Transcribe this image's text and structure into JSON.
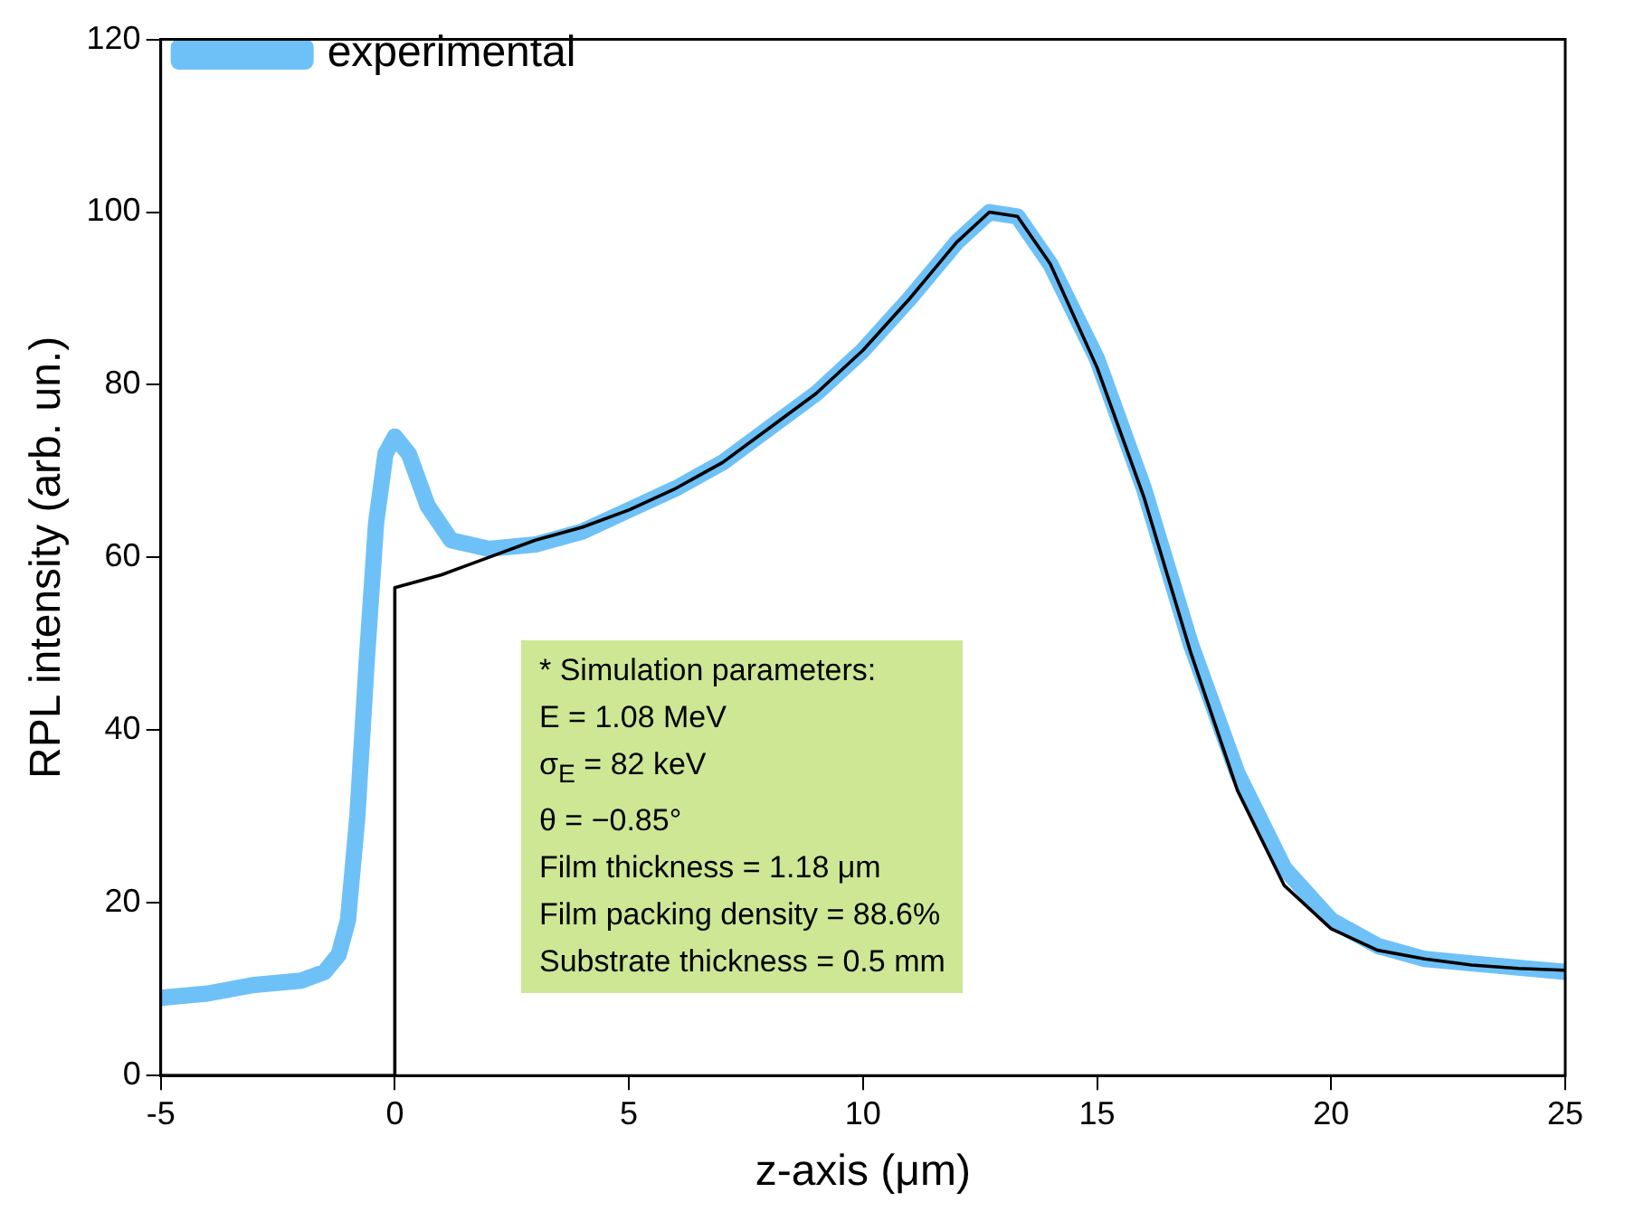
{
  "chart_data": {
    "type": "line",
    "xlabel": "z-axis (μm)",
    "ylabel": "RPL intensity (arb. un.)",
    "xlim": [
      -5,
      25
    ],
    "xticks": [
      -5,
      0,
      5,
      10,
      15,
      20,
      25
    ],
    "ylim": [
      0,
      120
    ],
    "yticks": [
      0,
      20,
      40,
      60,
      80,
      100,
      120
    ],
    "grid": false,
    "legend": "top left",
    "marker": "none",
    "line_style": "solid",
    "series": [
      {
        "name": "experimental",
        "color": "#6ec1f7",
        "x": [
          -5,
          -4,
          -3,
          -2,
          -1.5,
          -1.2,
          -1,
          -0.8,
          -0.6,
          -0.4,
          -0.2,
          0,
          0.3,
          0.7,
          1.2,
          2,
          3,
          4,
          5,
          6,
          7,
          8,
          9,
          10,
          11,
          12,
          12.7,
          13.3,
          14,
          15,
          16,
          17,
          18,
          19,
          20,
          21,
          22,
          23,
          24,
          25
        ],
        "values": [
          9,
          9.5,
          10.5,
          11,
          12,
          14,
          18,
          30,
          48,
          64,
          72,
          74,
          72,
          66,
          62,
          61,
          61.5,
          63,
          65.5,
          68,
          71,
          75,
          79,
          84,
          90,
          96.5,
          100,
          99.5,
          94,
          83,
          68,
          50,
          35,
          24,
          18,
          15,
          13.5,
          13,
          12.5,
          12
        ]
      },
      {
        "color": "#000000",
        "x": [
          -5,
          0,
          0,
          1,
          2,
          3,
          4,
          5,
          6,
          7,
          8,
          9,
          10,
          11,
          12,
          12.7,
          13.3,
          14,
          15,
          16,
          17,
          18,
          19,
          20,
          21,
          22,
          23,
          24,
          25
        ],
        "values": [
          0,
          0,
          56.5,
          58,
          60,
          62,
          63.5,
          65.5,
          68,
          71,
          75,
          79,
          84,
          90,
          96.5,
          100,
          99.5,
          94,
          82,
          67,
          49,
          33,
          22,
          17,
          14.5,
          13.5,
          12.8,
          12.4,
          12.2
        ]
      }
    ],
    "annotations": [
      "* Simulation parameters:",
      "E = 1.08 MeV",
      "σ$_{E}$ = 82 keV",
      "θ = −0.85°",
      "Film thickness = 1.18 μm",
      "Film packing density = 88.6%",
      "Substrate thickness = 0.5 mm"
    ]
  }
}
